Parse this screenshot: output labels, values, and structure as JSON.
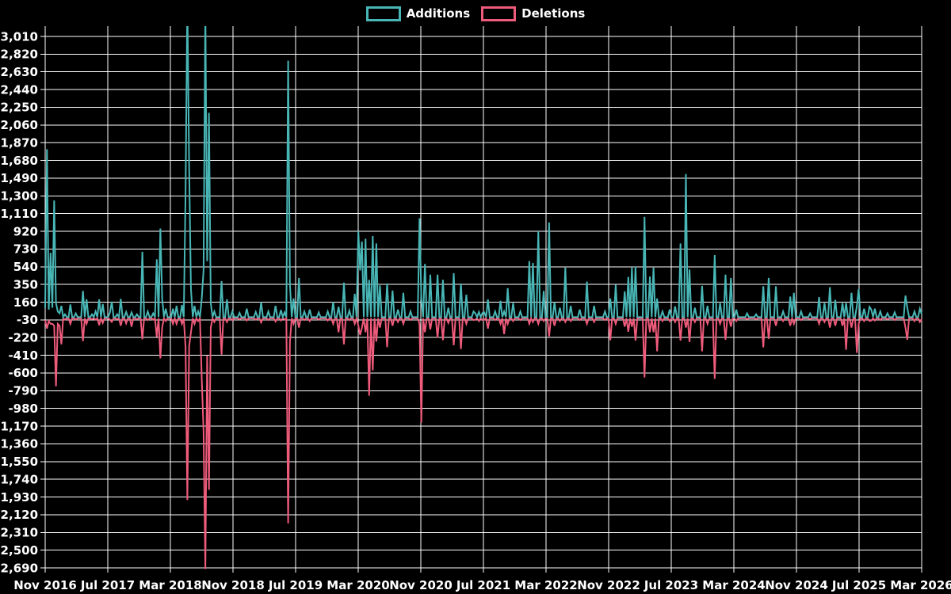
{
  "colors": {
    "background": "#000000",
    "grid": "#ffffff",
    "text": "#ffffff",
    "additions": "#49b6b6",
    "deletions": "#ef5b7b"
  },
  "legend": {
    "position": "top-center",
    "items": [
      {
        "label": "Additions",
        "color": "#49b6b6"
      },
      {
        "label": "Deletions",
        "color": "#ef5b7b"
      }
    ]
  },
  "chart_data": {
    "type": "line",
    "title": "",
    "xlabel": "",
    "ylabel": "",
    "grid": true,
    "x_axis": {
      "tick_labels": [
        "Nov 2016",
        "Jul 2017",
        "Mar 2018",
        "Nov 2018",
        "Jul 2019",
        "Mar 2020",
        "Nov 2020",
        "Jul 2021",
        "Mar 2022",
        "Nov 2022",
        "Jul 2023",
        "Mar 2024",
        "Nov 2024",
        "Jul 2025",
        "Mar 2026"
      ]
    },
    "y_axis": {
      "max": 3010,
      "min": -2690,
      "step": 190,
      "tick_labels": [
        "3,010",
        "2,820",
        "2,630",
        "2,440",
        "2,250",
        "2,060",
        "1,870",
        "1,680",
        "1,490",
        "1,300",
        "1,110",
        "920",
        "730",
        "540",
        "350",
        "160",
        "-30",
        "-220",
        "-410",
        "-600",
        "-790",
        "-980",
        "-1,170",
        "-1,360",
        "-1,550",
        "-1,740",
        "-1,930",
        "-2,120",
        "-2,310",
        "-2,500",
        "-2,690"
      ]
    },
    "series": [
      {
        "name": "Additions",
        "color": "#49b6b6"
      },
      {
        "name": "Deletions",
        "color": "#ef5b7b"
      }
    ],
    "weeks_total": 488,
    "baseline": 0,
    "note_clipped_peaks_weeks": [
      79,
      89
    ],
    "points_format": [
      "week_index",
      "additions",
      "deletions"
    ],
    "points": [
      [
        0,
        100,
        -20
      ],
      [
        1,
        1800,
        -110
      ],
      [
        2,
        80,
        -30
      ],
      [
        3,
        690,
        -60
      ],
      [
        4,
        100,
        -60
      ],
      [
        5,
        1250,
        -80
      ],
      [
        6,
        150,
        -730
      ],
      [
        7,
        60,
        -60
      ],
      [
        8,
        40,
        -80
      ],
      [
        9,
        120,
        -280
      ],
      [
        11,
        30,
        -15
      ],
      [
        14,
        135,
        -60
      ],
      [
        17,
        40,
        -15
      ],
      [
        21,
        280,
        -245
      ],
      [
        23,
        190,
        -60
      ],
      [
        26,
        30,
        -10
      ],
      [
        28,
        60,
        -15
      ],
      [
        30,
        190,
        -75
      ],
      [
        32,
        140,
        -50
      ],
      [
        36,
        50,
        -15
      ],
      [
        37,
        165,
        -40
      ],
      [
        40,
        30,
        -10
      ],
      [
        42,
        195,
        -80
      ],
      [
        45,
        55,
        -55
      ],
      [
        48,
        50,
        -90
      ],
      [
        51,
        30,
        -10
      ],
      [
        54,
        700,
        -225
      ],
      [
        57,
        60,
        -20
      ],
      [
        60,
        40,
        -15
      ],
      [
        62,
        620,
        -200
      ],
      [
        64,
        950,
        -430
      ],
      [
        65,
        200,
        -100
      ],
      [
        67,
        90,
        -30
      ],
      [
        71,
        90,
        -60
      ],
      [
        73,
        120,
        -60
      ],
      [
        76,
        130,
        -60
      ],
      [
        78,
        1330,
        -310
      ],
      [
        79,
        3400,
        -1950
      ],
      [
        80,
        1600,
        -300
      ],
      [
        81,
        300,
        -150
      ],
      [
        83,
        120,
        -60
      ],
      [
        85,
        60,
        -30
      ],
      [
        87,
        200,
        -650
      ],
      [
        88,
        500,
        -1210
      ],
      [
        89,
        3300,
        -2690
      ],
      [
        90,
        600,
        -400
      ],
      [
        91,
        2190,
        -1840
      ],
      [
        92,
        150,
        -100
      ],
      [
        94,
        60,
        -40
      ],
      [
        98,
        385,
        -390
      ],
      [
        101,
        190,
        -40
      ],
      [
        104,
        60,
        -20
      ],
      [
        108,
        45,
        -10
      ],
      [
        112,
        90,
        -25
      ],
      [
        117,
        55,
        -15
      ],
      [
        120,
        160,
        -45
      ],
      [
        124,
        60,
        -20
      ],
      [
        128,
        120,
        -35
      ],
      [
        131,
        75,
        -25
      ],
      [
        133,
        50,
        -15
      ],
      [
        135,
        2750,
        -2200
      ],
      [
        136,
        350,
        -250
      ],
      [
        138,
        200,
        -60
      ],
      [
        141,
        420,
        -100
      ],
      [
        144,
        60,
        -20
      ],
      [
        147,
        80,
        -30
      ],
      [
        152,
        50,
        -15
      ],
      [
        157,
        60,
        -25
      ],
      [
        160,
        160,
        -60
      ],
      [
        163,
        110,
        -150
      ],
      [
        166,
        370,
        -280
      ],
      [
        169,
        70,
        -20
      ],
      [
        172,
        250,
        -60
      ],
      [
        174,
        920,
        -80
      ],
      [
        175,
        500,
        -180
      ],
      [
        176,
        810,
        -100
      ],
      [
        178,
        840,
        -150
      ],
      [
        180,
        400,
        -830
      ],
      [
        182,
        870,
        -560
      ],
      [
        184,
        790,
        -250
      ],
      [
        186,
        340,
        -100
      ],
      [
        190,
        360,
        -310
      ],
      [
        193,
        285,
        -80
      ],
      [
        196,
        80,
        -40
      ],
      [
        199,
        260,
        -60
      ],
      [
        203,
        60,
        -20
      ],
      [
        208,
        1060,
        -60
      ],
      [
        209,
        200,
        -1120
      ],
      [
        211,
        570,
        -150
      ],
      [
        214,
        455,
        -120
      ],
      [
        218,
        455,
        -210
      ],
      [
        221,
        400,
        -235
      ],
      [
        224,
        100,
        -50
      ],
      [
        227,
        470,
        -290
      ],
      [
        231,
        360,
        -330
      ],
      [
        234,
        240,
        -60
      ],
      [
        238,
        60,
        -20
      ],
      [
        239,
        40,
        -15
      ],
      [
        241,
        55,
        -30
      ],
      [
        243,
        45,
        -20
      ],
      [
        244,
        50,
        -15
      ],
      [
        246,
        190,
        -110
      ],
      [
        250,
        60,
        -20
      ],
      [
        253,
        175,
        -60
      ],
      [
        255,
        60,
        -170
      ],
      [
        257,
        310,
        -60
      ],
      [
        260,
        150,
        -30
      ],
      [
        264,
        60,
        -20
      ],
      [
        269,
        600,
        -60
      ],
      [
        271,
        580,
        -40
      ],
      [
        274,
        920,
        -60
      ],
      [
        277,
        280,
        -30
      ],
      [
        280,
        1015,
        -195
      ],
      [
        283,
        160,
        -80
      ],
      [
        286,
        100,
        -30
      ],
      [
        289,
        530,
        -40
      ],
      [
        292,
        120,
        -30
      ],
      [
        297,
        80,
        -20
      ],
      [
        301,
        380,
        -60
      ],
      [
        305,
        120,
        -40
      ],
      [
        311,
        60,
        -20
      ],
      [
        314,
        200,
        -235
      ],
      [
        317,
        345,
        -60
      ],
      [
        322,
        275,
        -90
      ],
      [
        324,
        430,
        -145
      ],
      [
        326,
        530,
        -90
      ],
      [
        328,
        540,
        -240
      ],
      [
        333,
        1075,
        -635
      ],
      [
        336,
        435,
        -150
      ],
      [
        338,
        530,
        -150
      ],
      [
        340,
        200,
        -355
      ],
      [
        343,
        60,
        -30
      ],
      [
        347,
        80,
        -30
      ],
      [
        350,
        115,
        -40
      ],
      [
        353,
        790,
        -240
      ],
      [
        356,
        1535,
        -100
      ],
      [
        358,
        510,
        -255
      ],
      [
        361,
        100,
        -40
      ],
      [
        365,
        335,
        -355
      ],
      [
        368,
        120,
        -60
      ],
      [
        372,
        665,
        -650
      ],
      [
        375,
        150,
        -60
      ],
      [
        378,
        455,
        -230
      ],
      [
        381,
        420,
        -90
      ],
      [
        384,
        80,
        -30
      ],
      [
        390,
        40,
        -10
      ],
      [
        395,
        30,
        -10
      ],
      [
        399,
        330,
        -312
      ],
      [
        402,
        420,
        -220
      ],
      [
        406,
        330,
        -80
      ],
      [
        410,
        60,
        -30
      ],
      [
        414,
        220,
        -80
      ],
      [
        416,
        260,
        -60
      ],
      [
        420,
        60,
        -20
      ],
      [
        425,
        40,
        -10
      ],
      [
        430,
        215,
        -60
      ],
      [
        433,
        150,
        -40
      ],
      [
        436,
        320,
        -100
      ],
      [
        439,
        185,
        -80
      ],
      [
        443,
        150,
        -80
      ],
      [
        445,
        150,
        -337
      ],
      [
        448,
        260,
        -100
      ],
      [
        451,
        120,
        -371
      ],
      [
        452,
        300,
        -60
      ],
      [
        455,
        90,
        -30
      ],
      [
        458,
        110,
        -30
      ],
      [
        459,
        80,
        -25
      ],
      [
        461,
        90,
        -25
      ],
      [
        464,
        60,
        -20
      ],
      [
        468,
        40,
        -10
      ],
      [
        472,
        50,
        -20
      ],
      [
        478,
        230,
        -100
      ],
      [
        479,
        100,
        -230
      ],
      [
        483,
        60,
        -30
      ],
      [
        486,
        90,
        -40
      ],
      [
        487,
        30,
        -10
      ]
    ],
    "legend_entries": [
      "Additions",
      "Deletions"
    ]
  }
}
